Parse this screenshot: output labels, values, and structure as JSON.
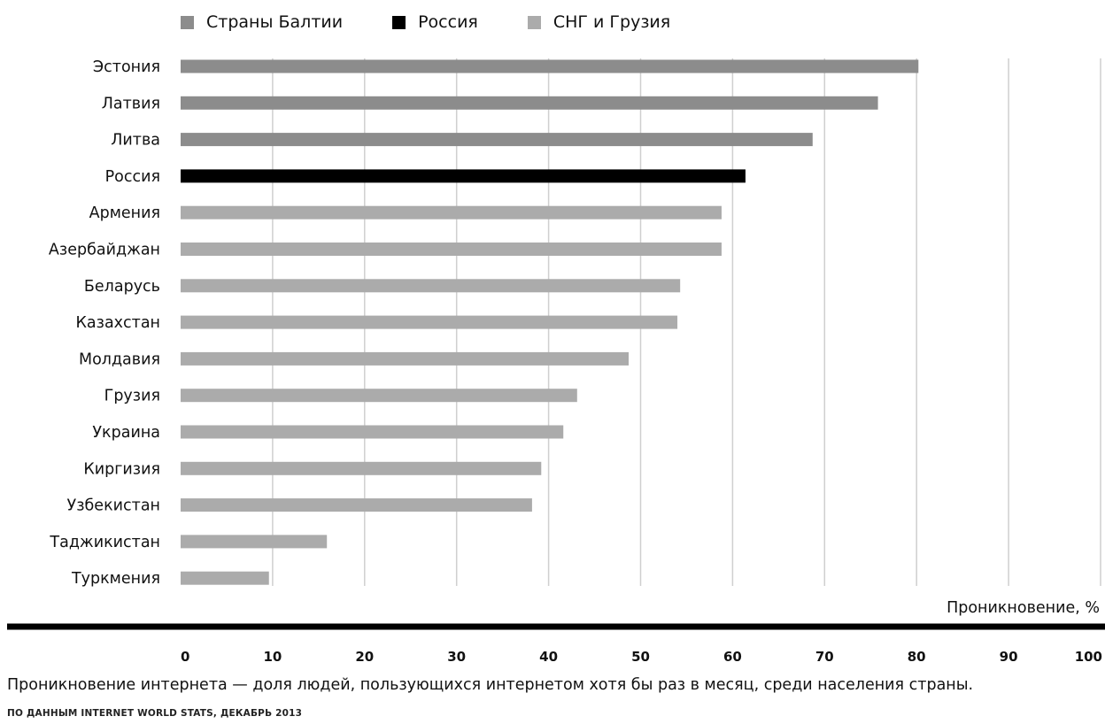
{
  "chart_data": {
    "type": "bar",
    "orientation": "horizontal",
    "categories": [
      "Эстония",
      "Латвия",
      "Литва",
      "Россия",
      "Армения",
      "Азербайджан",
      "Беларусь",
      "Казахстан",
      "Молдавия",
      "Грузия",
      "Украина",
      "Киргизия",
      "Узбекистан",
      "Таджикистан",
      "Туркмения"
    ],
    "values": [
      80.2,
      75.8,
      68.7,
      61.4,
      58.8,
      58.8,
      54.3,
      54.0,
      48.7,
      43.1,
      41.6,
      39.2,
      38.2,
      15.9,
      9.6
    ],
    "groups": [
      "baltic",
      "baltic",
      "baltic",
      "russia",
      "cis",
      "cis",
      "cis",
      "cis",
      "cis",
      "cis",
      "cis",
      "cis",
      "cis",
      "cis",
      "cis"
    ],
    "legend": [
      {
        "key": "baltic",
        "name": "Страны Балтии",
        "color": "#8c8c8c"
      },
      {
        "key": "russia",
        "name": "Россия",
        "color": "#000000"
      },
      {
        "key": "cis",
        "name": "СНГ и Грузия",
        "color": "#ababab"
      }
    ],
    "legend_position": "top",
    "xlabel": "Проникновение, %",
    "xlim": [
      0,
      100
    ],
    "xticks": [
      "0",
      "10",
      "20",
      "30",
      "40",
      "50",
      "60",
      "70",
      "80",
      "90",
      "100"
    ],
    "grid": true,
    "note": "Проникновение интернета — доля людей, пользующихся интернетом хотя бы раз в месяц, среди населения страны.",
    "source": "ПО ДАННЫМ INTERNET WORLD STATS, ДЕКАБРЬ 2013"
  }
}
